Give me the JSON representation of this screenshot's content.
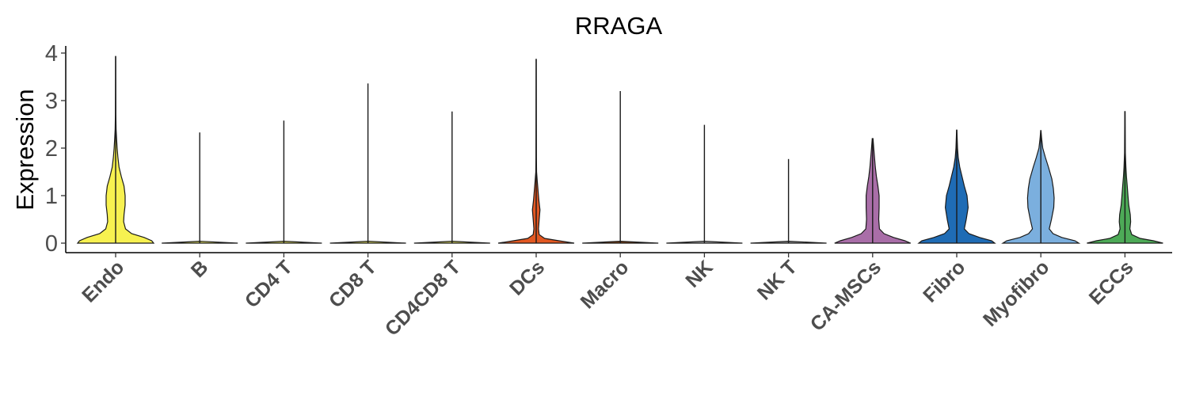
{
  "chart_data": {
    "type": "violin",
    "title": "RRAGA",
    "xlabel": "",
    "ylabel": "Expression",
    "ylim": [
      -0.2,
      4.15
    ],
    "yticks": [
      "0",
      "1",
      "2",
      "3",
      "4"
    ],
    "categories": [
      "Endo",
      "B",
      "CD4 T",
      "CD8 T",
      "CD4CD8 T",
      "DCs",
      "Macro",
      "NK",
      "NK T",
      "CA-MSCs",
      "Fibro",
      "Myofibro",
      "ECCs"
    ],
    "colors": [
      "#F7F150",
      "#F0EE6A",
      "#F0EE6A",
      "#F0EE6A",
      "#F0EE6A",
      "#E25822",
      "#8B4513",
      "#C0C0C0",
      "#A0A0A0",
      "#A96EA8",
      "#1F6CB5",
      "#7BAFDE",
      "#4DAA57"
    ],
    "max_values": [
      3.93,
      2.33,
      2.58,
      3.36,
      2.77,
      3.87,
      3.2,
      2.49,
      1.77,
      2.2,
      2.38,
      2.37,
      2.77
    ],
    "density_profiles": [
      [
        [
          0,
          1.0
        ],
        [
          0.05,
          0.95
        ],
        [
          0.12,
          0.75
        ],
        [
          0.2,
          0.42
        ],
        [
          0.3,
          0.26
        ],
        [
          0.45,
          0.21
        ],
        [
          0.6,
          0.22
        ],
        [
          0.8,
          0.25
        ],
        [
          1.0,
          0.25
        ],
        [
          1.2,
          0.22
        ],
        [
          1.4,
          0.15
        ],
        [
          1.6,
          0.09
        ],
        [
          1.8,
          0.06
        ],
        [
          2.0,
          0.04
        ],
        [
          2.2,
          0.025
        ],
        [
          2.4,
          0.012
        ],
        [
          2.7,
          0.006
        ],
        [
          3.2,
          0.004
        ],
        [
          3.93,
          0.003
        ]
      ],
      [
        [
          0,
          1.0
        ],
        [
          0.04,
          0.0
        ]
      ],
      [
        [
          0,
          1.0
        ],
        [
          0.04,
          0.0
        ]
      ],
      [
        [
          0,
          1.0
        ],
        [
          0.04,
          0.0
        ]
      ],
      [
        [
          0,
          1.0
        ],
        [
          0.04,
          0.0
        ]
      ],
      [
        [
          0,
          1.0
        ],
        [
          0.05,
          0.6
        ],
        [
          0.1,
          0.22
        ],
        [
          0.18,
          0.08
        ],
        [
          0.3,
          0.06
        ],
        [
          0.5,
          0.08
        ],
        [
          0.7,
          0.1
        ],
        [
          0.9,
          0.07
        ],
        [
          1.1,
          0.05
        ],
        [
          1.3,
          0.03
        ],
        [
          1.5,
          0.01
        ],
        [
          1.8,
          0.006
        ],
        [
          2.5,
          0.004
        ],
        [
          3.87,
          0.003
        ]
      ],
      [
        [
          0,
          1.0
        ],
        [
          0.04,
          0.0
        ]
      ],
      [
        [
          0,
          1.0
        ],
        [
          0.04,
          0.0
        ]
      ],
      [
        [
          0,
          1.0
        ],
        [
          0.04,
          0.0
        ]
      ],
      [
        [
          0,
          1.0
        ],
        [
          0.05,
          0.85
        ],
        [
          0.12,
          0.55
        ],
        [
          0.2,
          0.3
        ],
        [
          0.3,
          0.18
        ],
        [
          0.5,
          0.16
        ],
        [
          0.75,
          0.17
        ],
        [
          1.0,
          0.17
        ],
        [
          1.2,
          0.14
        ],
        [
          1.4,
          0.1
        ],
        [
          1.6,
          0.07
        ],
        [
          1.8,
          0.05
        ],
        [
          2.0,
          0.03
        ],
        [
          2.2,
          0.01
        ]
      ],
      [
        [
          0,
          1.0
        ],
        [
          0.05,
          0.92
        ],
        [
          0.12,
          0.6
        ],
        [
          0.2,
          0.32
        ],
        [
          0.3,
          0.2
        ],
        [
          0.5,
          0.25
        ],
        [
          0.75,
          0.3
        ],
        [
          1.0,
          0.27
        ],
        [
          1.2,
          0.2
        ],
        [
          1.4,
          0.14
        ],
        [
          1.6,
          0.08
        ],
        [
          1.8,
          0.04
        ],
        [
          2.0,
          0.02
        ],
        [
          2.38,
          0.005
        ]
      ],
      [
        [
          0,
          1.0
        ],
        [
          0.05,
          0.9
        ],
        [
          0.12,
          0.55
        ],
        [
          0.2,
          0.32
        ],
        [
          0.3,
          0.22
        ],
        [
          0.5,
          0.28
        ],
        [
          0.75,
          0.34
        ],
        [
          0.95,
          0.35
        ],
        [
          1.15,
          0.33
        ],
        [
          1.35,
          0.29
        ],
        [
          1.6,
          0.2
        ],
        [
          1.8,
          0.12
        ],
        [
          2.0,
          0.05
        ],
        [
          2.2,
          0.02
        ],
        [
          2.37,
          0.005
        ]
      ],
      [
        [
          0,
          1.0
        ],
        [
          0.05,
          0.75
        ],
        [
          0.1,
          0.4
        ],
        [
          0.18,
          0.18
        ],
        [
          0.3,
          0.13
        ],
        [
          0.45,
          0.15
        ],
        [
          0.6,
          0.14
        ],
        [
          0.8,
          0.1
        ],
        [
          1.0,
          0.08
        ],
        [
          1.2,
          0.06
        ],
        [
          1.4,
          0.04
        ],
        [
          1.6,
          0.025
        ],
        [
          1.9,
          0.01
        ],
        [
          2.77,
          0.004
        ]
      ]
    ]
  }
}
